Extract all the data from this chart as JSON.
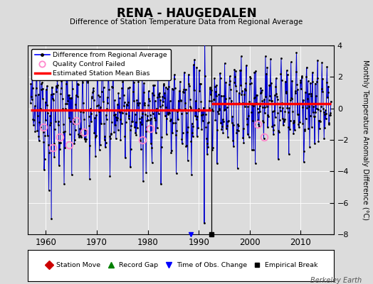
{
  "title": "RENA - HAUGEDALEN",
  "subtitle": "Difference of Station Temperature Data from Regional Average",
  "ylabel": "Monthly Temperature Anomaly Difference (°C)",
  "xlabel_years": [
    1960,
    1970,
    1980,
    1990,
    2000,
    2010
  ],
  "ylim": [
    -8,
    4
  ],
  "yticks": [
    -8,
    -6,
    -4,
    -2,
    0,
    2,
    4
  ],
  "xlim": [
    1956.5,
    2016.5
  ],
  "bias_before": -0.12,
  "bias_after": 0.28,
  "break_year": 1992.5,
  "empirical_break_year": 1992.5,
  "bg_color": "#dcdcdc",
  "line_color": "#0000cc",
  "bias_color": "#ff0000",
  "legend1_labels": [
    "Difference from Regional Average",
    "Quality Control Failed",
    "Estimated Station Mean Bias"
  ],
  "legend2_labels": [
    "Station Move",
    "Record Gap",
    "Time of Obs. Change",
    "Empirical Break"
  ],
  "watermark": "Berkeley Earth",
  "seed": 12345,
  "start_year": 1957.0,
  "end_year": 2016.0,
  "qc_failed_times": [
    1959.5,
    1961.3,
    1962.8,
    1964.5,
    1966.0,
    1967.5,
    1979.0,
    1980.5,
    2001.5,
    2002.8
  ],
  "qc_failed_values": [
    -1.2,
    -2.5,
    -1.8,
    -2.3,
    -0.8,
    -1.5,
    -2.0,
    -1.3,
    -1.0,
    -1.8
  ]
}
